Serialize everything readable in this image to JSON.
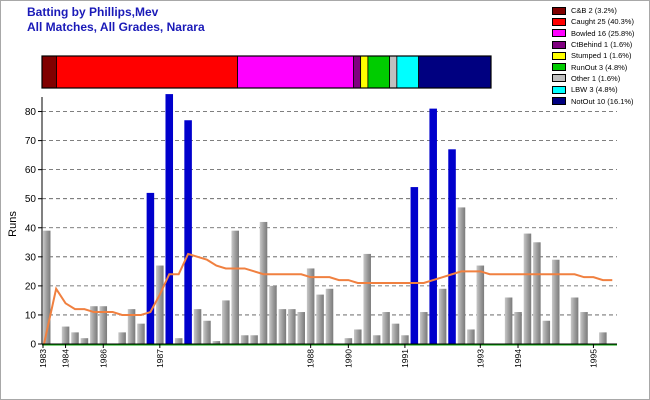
{
  "header": {
    "title_line1": "Batting by Phillips,Mev",
    "title_line2": "All Matches, All Grades, Narara"
  },
  "legend": [
    {
      "label": "C&B 2 (3.2%)",
      "color": "#800000"
    },
    {
      "label": "Caught 25 (40.3%)",
      "color": "#ff0000"
    },
    {
      "label": "Bowled 16 (25.8%)",
      "color": "#ff00ff"
    },
    {
      "label": "CtBehind 1 (1.6%)",
      "color": "#800080"
    },
    {
      "label": "Stumped 1 (1.6%)",
      "color": "#ffff00"
    },
    {
      "label": "RunOut 3 (4.8%)",
      "color": "#00cc00"
    },
    {
      "label": "Other 1 (1.6%)",
      "color": "#c0c0c0"
    },
    {
      "label": "LBW 3 (4.8%)",
      "color": "#00ffff"
    },
    {
      "label": "NotOut 10 (16.1%)",
      "color": "#000080"
    }
  ],
  "chart_data": [
    {
      "type": "bar",
      "name": "dismissal-breakdown",
      "segments": [
        {
          "label": "C&B",
          "count": 2,
          "color": "#800000"
        },
        {
          "label": "Caught",
          "count": 25,
          "color": "#ff0000"
        },
        {
          "label": "Bowled",
          "count": 16,
          "color": "#ff00ff"
        },
        {
          "label": "CtBehind",
          "count": 1,
          "color": "#800080"
        },
        {
          "label": "Stumped",
          "count": 1,
          "color": "#ffff00"
        },
        {
          "label": "RunOut",
          "count": 3,
          "color": "#00cc00"
        },
        {
          "label": "Other",
          "count": 1,
          "color": "#c0c0c0"
        },
        {
          "label": "LBW",
          "count": 3,
          "color": "#00ffff"
        },
        {
          "label": "NotOut",
          "count": 10,
          "color": "#000080"
        }
      ]
    },
    {
      "type": "bar",
      "ylabel": "Runs",
      "ylim": [
        0,
        85
      ],
      "yticks": [
        0,
        10,
        20,
        30,
        40,
        50,
        60,
        70,
        80
      ],
      "grid": true,
      "colors": {
        "out": "#a0a0a0",
        "not_out": "#0000cc",
        "average": "#f08040"
      },
      "innings": [
        {
          "runs": 39,
          "not_out": false
        },
        {
          "runs": 0,
          "not_out": false
        },
        {
          "runs": 6,
          "not_out": false
        },
        {
          "runs": 4,
          "not_out": false
        },
        {
          "runs": 2,
          "not_out": false
        },
        {
          "runs": 13,
          "not_out": false
        },
        {
          "runs": 13,
          "not_out": false
        },
        {
          "runs": 0,
          "not_out": false
        },
        {
          "runs": 4,
          "not_out": false
        },
        {
          "runs": 12,
          "not_out": false
        },
        {
          "runs": 7,
          "not_out": false
        },
        {
          "runs": 52,
          "not_out": true
        },
        {
          "runs": 27,
          "not_out": false
        },
        {
          "runs": 86,
          "not_out": true
        },
        {
          "runs": 2,
          "not_out": false
        },
        {
          "runs": 77,
          "not_out": true
        },
        {
          "runs": 12,
          "not_out": false
        },
        {
          "runs": 8,
          "not_out": false
        },
        {
          "runs": 1,
          "not_out": false
        },
        {
          "runs": 15,
          "not_out": false
        },
        {
          "runs": 39,
          "not_out": false
        },
        {
          "runs": 3,
          "not_out": false
        },
        {
          "runs": 3,
          "not_out": false
        },
        {
          "runs": 42,
          "not_out": false
        },
        {
          "runs": 20,
          "not_out": false
        },
        {
          "runs": 12,
          "not_out": false
        },
        {
          "runs": 12,
          "not_out": false
        },
        {
          "runs": 11,
          "not_out": false
        },
        {
          "runs": 26,
          "not_out": false
        },
        {
          "runs": 17,
          "not_out": false
        },
        {
          "runs": 19,
          "not_out": false
        },
        {
          "runs": 0,
          "not_out": false
        },
        {
          "runs": 2,
          "not_out": false
        },
        {
          "runs": 5,
          "not_out": false
        },
        {
          "runs": 31,
          "not_out": false
        },
        {
          "runs": 3,
          "not_out": false
        },
        {
          "runs": 11,
          "not_out": false
        },
        {
          "runs": 7,
          "not_out": false
        },
        {
          "runs": 3,
          "not_out": false
        },
        {
          "runs": 54,
          "not_out": true
        },
        {
          "runs": 11,
          "not_out": false
        },
        {
          "runs": 81,
          "not_out": true
        },
        {
          "runs": 19,
          "not_out": false
        },
        {
          "runs": 67,
          "not_out": true
        },
        {
          "runs": 47,
          "not_out": false
        },
        {
          "runs": 5,
          "not_out": false
        },
        {
          "runs": 27,
          "not_out": false
        },
        {
          "runs": 0,
          "not_out": false
        },
        {
          "runs": 0,
          "not_out": false
        },
        {
          "runs": 16,
          "not_out": false
        },
        {
          "runs": 11,
          "not_out": false
        },
        {
          "runs": 38,
          "not_out": false
        },
        {
          "runs": 35,
          "not_out": false
        },
        {
          "runs": 8,
          "not_out": false
        },
        {
          "runs": 29,
          "not_out": false
        },
        {
          "runs": 0,
          "not_out": false
        },
        {
          "runs": 16,
          "not_out": false
        },
        {
          "runs": 11,
          "not_out": false
        },
        {
          "runs": 0,
          "not_out": false
        },
        {
          "runs": 4,
          "not_out": false
        },
        {
          "runs": 0,
          "not_out": false
        }
      ],
      "average_line": [
        0,
        19,
        14,
        12,
        12,
        11,
        11,
        11,
        10,
        10,
        10,
        11,
        17,
        24,
        24,
        31,
        30,
        29,
        27,
        26,
        26,
        26,
        25,
        24,
        24,
        24,
        24,
        24,
        23,
        23,
        23,
        22,
        22,
        21,
        21,
        21,
        21,
        21,
        21,
        21,
        21,
        22,
        23,
        24,
        25,
        25,
        25,
        24,
        24,
        24,
        24,
        24,
        24,
        24,
        24,
        24,
        24,
        23,
        23,
        22,
        22
      ],
      "x_tick_labels": [
        {
          "label": "1983",
          "index": 0
        },
        {
          "label": "1984",
          "index": 2
        },
        {
          "label": "1986",
          "index": 6
        },
        {
          "label": "1987",
          "index": 12
        },
        {
          "label": "1988",
          "index": 28
        },
        {
          "label": "1990",
          "index": 32
        },
        {
          "label": "1991",
          "index": 38
        },
        {
          "label": "1993",
          "index": 46
        },
        {
          "label": "1994",
          "index": 50
        },
        {
          "label": "1995",
          "index": 58
        }
      ]
    }
  ]
}
